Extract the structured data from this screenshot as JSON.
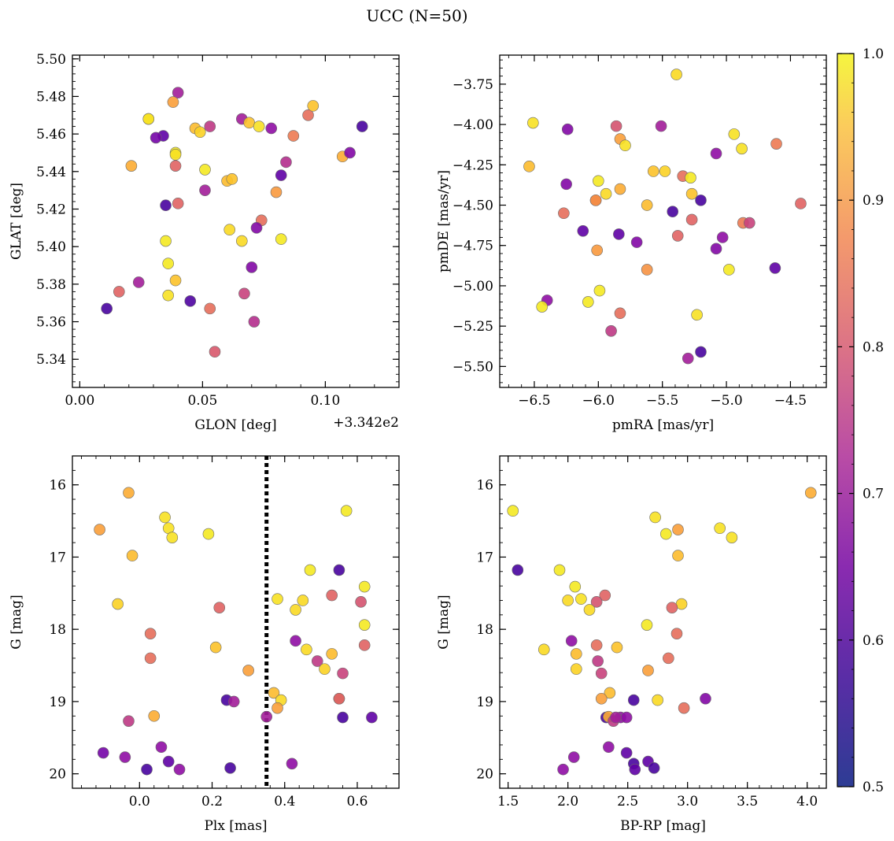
{
  "figure": {
    "title": "UCC (N=50)",
    "colorbar": {
      "min": 0.5,
      "max": 1.0,
      "ticks": [
        "1.0",
        "0.9",
        "0.8",
        "0.7",
        "0.6",
        "0.5"
      ],
      "cmap": "plasma"
    }
  },
  "chart_data": [
    {
      "type": "scatter",
      "id": "glon-glat",
      "xlabel": "GLON [deg]",
      "ylabel": "GLAT [deg]",
      "offset_text": "+3.342e2",
      "xlim": [
        -0.003,
        0.13
      ],
      "ylim": [
        5.325,
        5.502
      ],
      "xticks": [
        0.0,
        0.05,
        0.1
      ],
      "xtick_labels": [
        "0.00",
        "0.05",
        "0.10"
      ],
      "yticks": [
        5.34,
        5.36,
        5.38,
        5.4,
        5.42,
        5.44,
        5.46,
        5.48,
        5.5
      ],
      "ytick_labels": [
        "5.34",
        "5.36",
        "5.38",
        "5.40",
        "5.42",
        "5.44",
        "5.46",
        "5.48",
        "5.50"
      ],
      "points": [
        [
          0.04,
          5.482,
          0.65
        ],
        [
          0.038,
          5.477,
          0.88
        ],
        [
          0.028,
          5.468,
          0.98
        ],
        [
          0.034,
          5.459,
          0.55
        ],
        [
          0.031,
          5.458,
          0.58
        ],
        [
          0.039,
          5.45,
          0.98
        ],
        [
          0.039,
          5.449,
          0.97
        ],
        [
          0.039,
          5.443,
          0.78
        ],
        [
          0.021,
          5.443,
          0.9
        ],
        [
          0.047,
          5.463,
          0.92
        ],
        [
          0.049,
          5.461,
          0.95
        ],
        [
          0.053,
          5.464,
          0.7
        ],
        [
          0.066,
          5.468,
          0.65
        ],
        [
          0.069,
          5.466,
          0.93
        ],
        [
          0.073,
          5.464,
          0.97
        ],
        [
          0.078,
          5.463,
          0.62
        ],
        [
          0.087,
          5.459,
          0.82
        ],
        [
          0.093,
          5.47,
          0.8
        ],
        [
          0.095,
          5.475,
          0.93
        ],
        [
          0.107,
          5.448,
          0.9
        ],
        [
          0.11,
          5.45,
          0.6
        ],
        [
          0.115,
          5.464,
          0.52
        ],
        [
          0.051,
          5.441,
          0.98
        ],
        [
          0.06,
          5.435,
          0.92
        ],
        [
          0.062,
          5.436,
          0.93
        ],
        [
          0.051,
          5.43,
          0.65
        ],
        [
          0.035,
          5.422,
          0.52
        ],
        [
          0.04,
          5.423,
          0.78
        ],
        [
          0.082,
          5.438,
          0.55
        ],
        [
          0.084,
          5.445,
          0.68
        ],
        [
          0.08,
          5.429,
          0.87
        ],
        [
          0.074,
          5.414,
          0.8
        ],
        [
          0.072,
          5.41,
          0.6
        ],
        [
          0.061,
          5.409,
          0.96
        ],
        [
          0.066,
          5.403,
          0.96
        ],
        [
          0.035,
          5.403,
          0.98
        ],
        [
          0.082,
          5.404,
          0.98
        ],
        [
          0.036,
          5.391,
          0.98
        ],
        [
          0.07,
          5.389,
          0.6
        ],
        [
          0.039,
          5.382,
          0.93
        ],
        [
          0.036,
          5.374,
          0.97
        ],
        [
          0.016,
          5.376,
          0.78
        ],
        [
          0.024,
          5.381,
          0.65
        ],
        [
          0.067,
          5.375,
          0.72
        ],
        [
          0.011,
          5.367,
          0.52
        ],
        [
          0.045,
          5.371,
          0.53
        ],
        [
          0.053,
          5.367,
          0.8
        ],
        [
          0.071,
          5.36,
          0.68
        ],
        [
          0.055,
          5.344,
          0.76
        ],
        [
          0.028,
          5.468,
          0.97
        ]
      ]
    },
    {
      "type": "scatter",
      "id": "pmra-pmde",
      "xlabel": "pmRA [mas/yr]",
      "ylabel": "pmDE [mas/yr]",
      "xlim": [
        -6.77,
        -4.22
      ],
      "ylim": [
        -5.63,
        -3.57
      ],
      "xticks": [
        -6.5,
        -6.0,
        -5.5,
        -5.0,
        -4.5
      ],
      "xtick_labels": [
        "−6.5",
        "−6.0",
        "−5.5",
        "−5.0",
        "−4.5"
      ],
      "yticks": [
        -5.5,
        -5.25,
        -5.0,
        -4.75,
        -4.5,
        -4.25,
        -4.0,
        -3.75
      ],
      "ytick_labels": [
        "−5.50",
        "−5.25",
        "−5.00",
        "−4.75",
        "−4.50",
        "−4.25",
        "−4.00",
        "−3.75"
      ],
      "points": [
        [
          -5.39,
          -3.69,
          0.96
        ],
        [
          -6.51,
          -3.99,
          0.97
        ],
        [
          -6.24,
          -4.03,
          0.6
        ],
        [
          -5.86,
          -4.01,
          0.75
        ],
        [
          -5.51,
          -4.01,
          0.65
        ],
        [
          -5.83,
          -4.09,
          0.88
        ],
        [
          -5.79,
          -4.13,
          0.97
        ],
        [
          -4.94,
          -4.06,
          0.97
        ],
        [
          -4.61,
          -4.12,
          0.82
        ],
        [
          -4.88,
          -4.15,
          0.97
        ],
        [
          -5.08,
          -4.18,
          0.62
        ],
        [
          -6.54,
          -4.26,
          0.92
        ],
        [
          -5.57,
          -4.29,
          0.93
        ],
        [
          -5.48,
          -4.29,
          0.95
        ],
        [
          -5.34,
          -4.32,
          0.8
        ],
        [
          -5.28,
          -4.33,
          0.98
        ],
        [
          -5.94,
          -4.43,
          0.96
        ],
        [
          -6.0,
          -4.35,
          0.98
        ],
        [
          -5.83,
          -4.4,
          0.9
        ],
        [
          -6.25,
          -4.37,
          0.6
        ],
        [
          -5.27,
          -4.43,
          0.93
        ],
        [
          -6.02,
          -4.47,
          0.85
        ],
        [
          -6.02,
          -4.47,
          0.85
        ],
        [
          -5.62,
          -4.5,
          0.92
        ],
        [
          -5.42,
          -4.54,
          0.52
        ],
        [
          -5.2,
          -4.47,
          0.52
        ],
        [
          -4.42,
          -4.49,
          0.78
        ],
        [
          -6.27,
          -4.55,
          0.8
        ],
        [
          -5.27,
          -4.59,
          0.78
        ],
        [
          -4.87,
          -4.61,
          0.82
        ],
        [
          -4.82,
          -4.61,
          0.72
        ],
        [
          -6.12,
          -4.66,
          0.55
        ],
        [
          -5.84,
          -4.68,
          0.55
        ],
        [
          -5.38,
          -4.69,
          0.78
        ],
        [
          -5.03,
          -4.7,
          0.62
        ],
        [
          -6.01,
          -4.78,
          0.87
        ],
        [
          -5.7,
          -4.73,
          0.6
        ],
        [
          -5.08,
          -4.77,
          0.6
        ],
        [
          -4.62,
          -4.89,
          0.55
        ],
        [
          -5.62,
          -4.9,
          0.86
        ],
        [
          -4.98,
          -4.9,
          0.98
        ],
        [
          -5.99,
          -5.03,
          0.98
        ],
        [
          -6.08,
          -5.1,
          0.98
        ],
        [
          -6.4,
          -5.09,
          0.62
        ],
        [
          -6.44,
          -5.13,
          0.98
        ],
        [
          -5.83,
          -5.17,
          0.8
        ],
        [
          -5.23,
          -5.18,
          0.97
        ],
        [
          -5.9,
          -5.28,
          0.7
        ],
        [
          -5.3,
          -5.45,
          0.65
        ],
        [
          -5.2,
          -5.41,
          0.52
        ]
      ]
    },
    {
      "type": "scatter",
      "id": "plx-g",
      "xlabel": "Plx [mas]",
      "ylabel": "G [mag]",
      "y_inverted": true,
      "xlim": [
        -0.185,
        0.715
      ],
      "ylim": [
        20.2,
        15.6
      ],
      "xticks": [
        0.0,
        0.2,
        0.4,
        0.6
      ],
      "xtick_labels": [
        "0.0",
        "0.2",
        "0.4",
        "0.6"
      ],
      "yticks": [
        16,
        17,
        18,
        19,
        20
      ],
      "ytick_labels": [
        "16",
        "17",
        "18",
        "19",
        "20"
      ],
      "vline": 0.35,
      "points": [
        [
          -0.03,
          16.11,
          0.9
        ],
        [
          0.07,
          16.45,
          0.97
        ],
        [
          0.08,
          16.6,
          0.97
        ],
        [
          0.09,
          16.73,
          0.97
        ],
        [
          -0.11,
          16.62,
          0.88
        ],
        [
          0.19,
          16.68,
          0.98
        ],
        [
          0.57,
          16.36,
          0.98
        ],
        [
          -0.02,
          16.98,
          0.92
        ],
        [
          0.47,
          17.18,
          0.98
        ],
        [
          0.55,
          17.18,
          0.52
        ],
        [
          0.62,
          17.41,
          0.98
        ],
        [
          -0.06,
          17.65,
          0.95
        ],
        [
          0.53,
          17.53,
          0.78
        ],
        [
          0.61,
          17.62,
          0.75
        ],
        [
          0.22,
          17.7,
          0.78
        ],
        [
          0.38,
          17.58,
          0.97
        ],
        [
          0.45,
          17.6,
          0.96
        ],
        [
          0.43,
          17.73,
          0.96
        ],
        [
          0.03,
          18.06,
          0.8
        ],
        [
          0.62,
          17.94,
          0.98
        ],
        [
          0.43,
          18.16,
          0.62
        ],
        [
          0.21,
          18.25,
          0.93
        ],
        [
          0.46,
          18.28,
          0.96
        ],
        [
          0.62,
          18.22,
          0.78
        ],
        [
          0.03,
          18.4,
          0.8
        ],
        [
          0.53,
          18.34,
          0.92
        ],
        [
          0.49,
          18.44,
          0.7
        ],
        [
          0.51,
          18.55,
          0.95
        ],
        [
          0.56,
          18.61,
          0.72
        ],
        [
          0.3,
          18.57,
          0.88
        ],
        [
          0.37,
          18.88,
          0.92
        ],
        [
          0.39,
          18.98,
          0.96
        ],
        [
          0.24,
          18.98,
          0.52
        ],
        [
          0.26,
          19.0,
          0.65
        ],
        [
          0.55,
          18.96,
          0.6
        ],
        [
          0.55,
          18.96,
          0.8
        ],
        [
          0.38,
          19.09,
          0.88
        ],
        [
          0.04,
          19.2,
          0.9
        ],
        [
          -0.03,
          19.27,
          0.7
        ],
        [
          0.35,
          19.21,
          0.65
        ],
        [
          0.56,
          19.22,
          0.52
        ],
        [
          0.64,
          19.22,
          0.55
        ],
        [
          0.06,
          19.63,
          0.62
        ],
        [
          -0.1,
          19.71,
          0.58
        ],
        [
          -0.04,
          19.77,
          0.62
        ],
        [
          0.08,
          19.83,
          0.55
        ],
        [
          0.42,
          19.86,
          0.62
        ],
        [
          0.02,
          19.94,
          0.52
        ],
        [
          0.11,
          19.94,
          0.62
        ],
        [
          0.25,
          19.92,
          0.52
        ]
      ]
    },
    {
      "type": "scatter",
      "id": "bprp-g",
      "xlabel": "BP-RP [mag]",
      "ylabel": "G [mag]",
      "y_inverted": true,
      "xlim": [
        1.43,
        4.16
      ],
      "ylim": [
        20.2,
        15.6
      ],
      "xticks": [
        1.5,
        2.0,
        2.5,
        3.0,
        3.5,
        4.0
      ],
      "xtick_labels": [
        "1.5",
        "2.0",
        "2.5",
        "3.0",
        "3.5",
        "4.0"
      ],
      "yticks": [
        16,
        17,
        18,
        19,
        20
      ],
      "ytick_labels": [
        "16",
        "17",
        "18",
        "19",
        "20"
      ],
      "points": [
        [
          1.54,
          16.36,
          0.98
        ],
        [
          4.03,
          16.11,
          0.9
        ],
        [
          2.73,
          16.45,
          0.97
        ],
        [
          3.27,
          16.6,
          0.97
        ],
        [
          3.37,
          16.73,
          0.97
        ],
        [
          2.92,
          16.62,
          0.88
        ],
        [
          2.82,
          16.68,
          0.98
        ],
        [
          2.92,
          16.98,
          0.92
        ],
        [
          1.58,
          17.18,
          0.52
        ],
        [
          1.93,
          17.18,
          0.98
        ],
        [
          2.06,
          17.41,
          0.98
        ],
        [
          2.11,
          17.58,
          0.97
        ],
        [
          2.0,
          17.6,
          0.96
        ],
        [
          2.31,
          17.53,
          0.78
        ],
        [
          2.24,
          17.62,
          0.75
        ],
        [
          2.95,
          17.65,
          0.95
        ],
        [
          2.87,
          17.7,
          0.78
        ],
        [
          2.18,
          17.73,
          0.96
        ],
        [
          2.66,
          17.94,
          0.98
        ],
        [
          2.91,
          18.06,
          0.8
        ],
        [
          2.03,
          18.16,
          0.62
        ],
        [
          2.24,
          18.22,
          0.8
        ],
        [
          2.41,
          18.25,
          0.93
        ],
        [
          1.8,
          18.28,
          0.96
        ],
        [
          2.07,
          18.34,
          0.92
        ],
        [
          2.25,
          18.44,
          0.7
        ],
        [
          2.84,
          18.4,
          0.8
        ],
        [
          2.07,
          18.55,
          0.95
        ],
        [
          2.28,
          18.61,
          0.72
        ],
        [
          2.67,
          18.57,
          0.88
        ],
        [
          2.35,
          18.88,
          0.92
        ],
        [
          2.28,
          18.96,
          0.88
        ],
        [
          2.55,
          18.98,
          0.52
        ],
        [
          2.75,
          18.98,
          0.96
        ],
        [
          3.15,
          18.96,
          0.6
        ],
        [
          2.97,
          19.09,
          0.8
        ],
        [
          2.32,
          19.22,
          0.52
        ],
        [
          2.34,
          19.21,
          0.9
        ],
        [
          2.44,
          19.22,
          0.62
        ],
        [
          2.49,
          19.22,
          0.62
        ],
        [
          2.38,
          19.27,
          0.7
        ],
        [
          2.34,
          19.63,
          0.62
        ],
        [
          2.49,
          19.71,
          0.55
        ],
        [
          2.05,
          19.77,
          0.62
        ],
        [
          2.55,
          19.86,
          0.52
        ],
        [
          2.67,
          19.83,
          0.55
        ],
        [
          2.56,
          19.94,
          0.55
        ],
        [
          1.96,
          19.94,
          0.62
        ],
        [
          2.72,
          19.92,
          0.52
        ],
        [
          2.4,
          19.22,
          0.65
        ]
      ]
    }
  ]
}
